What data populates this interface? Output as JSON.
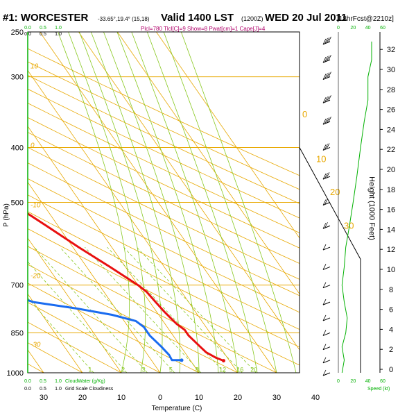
{
  "header": {
    "station": "#1: WORCESTER",
    "coords": "-33.65°,19.4° (15,18)",
    "valid": "Valid 1400 LST",
    "utc": "(1200Z)",
    "date": "WED 20 Jul 2011",
    "forecast": "[18hrFcst@2210z]",
    "indices": "Plcl=780 Tlcl[C]=9 Show=8 Pwat[cm]=1 Cape[J]=4"
  },
  "colors": {
    "temperature": "#e81010",
    "dewpoint": "#1a6cf0",
    "isotherm": "#e8a800",
    "dry_adiabat": "#e8a800",
    "moist_adiabat": "#88c820",
    "mixing_ratio": "#88c820",
    "cloud_axis": "#00b000",
    "wind_speed": "#00b000",
    "label_green": "#00b000",
    "text": "#000000"
  },
  "chart_data": {
    "type": "line",
    "title": "#1: WORCESTER  Valid 1400 LST (1200Z) WED 20 Jul 2011",
    "xlabel": "Temperature (C)",
    "ylabel": "P (hPa)",
    "y2label": "Height (1000 Feet)",
    "pressure_ticks": [
      250,
      300,
      400,
      500,
      700,
      850,
      1000
    ],
    "temperature_ticks": [
      30,
      20,
      10,
      0,
      10,
      20,
      30,
      40
    ],
    "temperature_tick_values": [
      -30,
      -20,
      -10,
      0,
      10,
      20,
      30,
      40
    ],
    "xlim": [
      -35,
      45
    ],
    "plim": [
      250,
      1000
    ],
    "height_ticks_kft": [
      0,
      2,
      4,
      6,
      8,
      10,
      12,
      14,
      16,
      18,
      20,
      22,
      24,
      26,
      28,
      30,
      32
    ],
    "isotherm_labels": [
      {
        "text": "10",
        "p": 290
      },
      {
        "text": "0",
        "p": 400
      },
      {
        "text": "-10",
        "p": 510
      },
      {
        "text": "-20",
        "p": 680
      },
      {
        "text": "-30",
        "p": 900
      }
    ],
    "dry_adiabat_labels": [
      {
        "text": "0",
        "p": 350
      },
      {
        "text": "10",
        "p": 420
      },
      {
        "text": "20",
        "p": 480
      },
      {
        "text": "30",
        "p": 550
      }
    ],
    "mixing_ratio_labels": [
      "1",
      "2",
      "3",
      "5",
      "8",
      "12",
      "16",
      "20"
    ],
    "cloud_top_labels": [
      "0.0",
      "0.5",
      "1.0"
    ],
    "cloud_top_sub": [
      "0.0",
      "0.5",
      "1.0"
    ],
    "cloud_bottom_labels": [
      "0.0",
      "0.5",
      "1.0"
    ],
    "cloud_bottom_sub": [
      "0.0",
      "0.5",
      "1.0"
    ],
    "cloud_water_label": "CloudWater (g/Kg)",
    "grid_scale_label": "Grid Scale Cloudiness",
    "speed_ticks": [
      "0",
      "20",
      "40",
      "60"
    ],
    "speed_label": "Speed (kt)",
    "series": [
      {
        "name": "Temperature",
        "points": [
          {
            "p": 952,
            "t": 18.5
          },
          {
            "p": 940,
            "t": 17
          },
          {
            "p": 920,
            "t": 15.5
          },
          {
            "p": 900,
            "t": 15
          },
          {
            "p": 880,
            "t": 14.5
          },
          {
            "p": 860,
            "t": 14
          },
          {
            "p": 840,
            "t": 14
          },
          {
            "p": 820,
            "t": 13
          },
          {
            "p": 800,
            "t": 12.5
          },
          {
            "p": 780,
            "t": 12
          },
          {
            "p": 750,
            "t": 11.5
          },
          {
            "p": 720,
            "t": 11
          },
          {
            "p": 700,
            "t": 10
          },
          {
            "p": 650,
            "t": 6
          },
          {
            "p": 600,
            "t": 1.5
          },
          {
            "p": 550,
            "t": -3
          },
          {
            "p": 500,
            "t": -8
          },
          {
            "p": 450,
            "t": -13
          },
          {
            "p": 400,
            "t": -19
          },
          {
            "p": 350,
            "t": -27
          },
          {
            "p": 300,
            "t": -36
          },
          {
            "p": 270,
            "t": -43
          }
        ]
      },
      {
        "name": "Dewpoint",
        "points": [
          {
            "p": 950,
            "t": 7.8
          },
          {
            "p": 950,
            "t": 5.3
          },
          {
            "p": 930,
            "t": 5.5
          },
          {
            "p": 900,
            "t": 5
          },
          {
            "p": 880,
            "t": 4.5
          },
          {
            "p": 860,
            "t": 4
          },
          {
            "p": 830,
            "t": 4
          },
          {
            "p": 810,
            "t": 3
          },
          {
            "p": 790,
            "t": -2
          },
          {
            "p": 770,
            "t": -10
          },
          {
            "p": 750,
            "t": -20
          },
          {
            "p": 730,
            "t": -24
          },
          {
            "p": 710,
            "t": -25
          },
          {
            "p": 690,
            "t": -22
          },
          {
            "p": 650,
            "t": -20
          },
          {
            "p": 620,
            "t": -21
          },
          {
            "p": 580,
            "t": -25
          },
          {
            "p": 540,
            "t": -31
          },
          {
            "p": 500,
            "t": -39
          },
          {
            "p": 460,
            "t": -49
          },
          {
            "p": 430,
            "t": -57
          },
          {
            "p": 400,
            "t": -66
          },
          {
            "p": 375,
            "t": -76
          },
          {
            "p": 350,
            "t": -80
          },
          {
            "p": 320,
            "t": -81
          },
          {
            "p": 300,
            "t": -84
          },
          {
            "p": 285,
            "t": -86
          },
          {
            "p": 270,
            "t": -88
          }
        ]
      }
    ],
    "wind_profile_kt": [
      {
        "p": 260,
        "speed": 45
      },
      {
        "p": 280,
        "speed": 45
      },
      {
        "p": 300,
        "speed": 40
      },
      {
        "p": 330,
        "speed": 40
      },
      {
        "p": 360,
        "speed": 35
      },
      {
        "p": 400,
        "speed": 30
      },
      {
        "p": 450,
        "speed": 25
      },
      {
        "p": 500,
        "speed": 20
      },
      {
        "p": 550,
        "speed": 15
      },
      {
        "p": 600,
        "speed": 10
      },
      {
        "p": 650,
        "speed": 8
      },
      {
        "p": 700,
        "speed": 5
      },
      {
        "p": 750,
        "speed": 8
      },
      {
        "p": 800,
        "speed": 12
      },
      {
        "p": 850,
        "speed": 10
      },
      {
        "p": 900,
        "speed": 5
      },
      {
        "p": 950,
        "speed": 8
      },
      {
        "p": 1000,
        "speed": 5
      }
    ]
  }
}
